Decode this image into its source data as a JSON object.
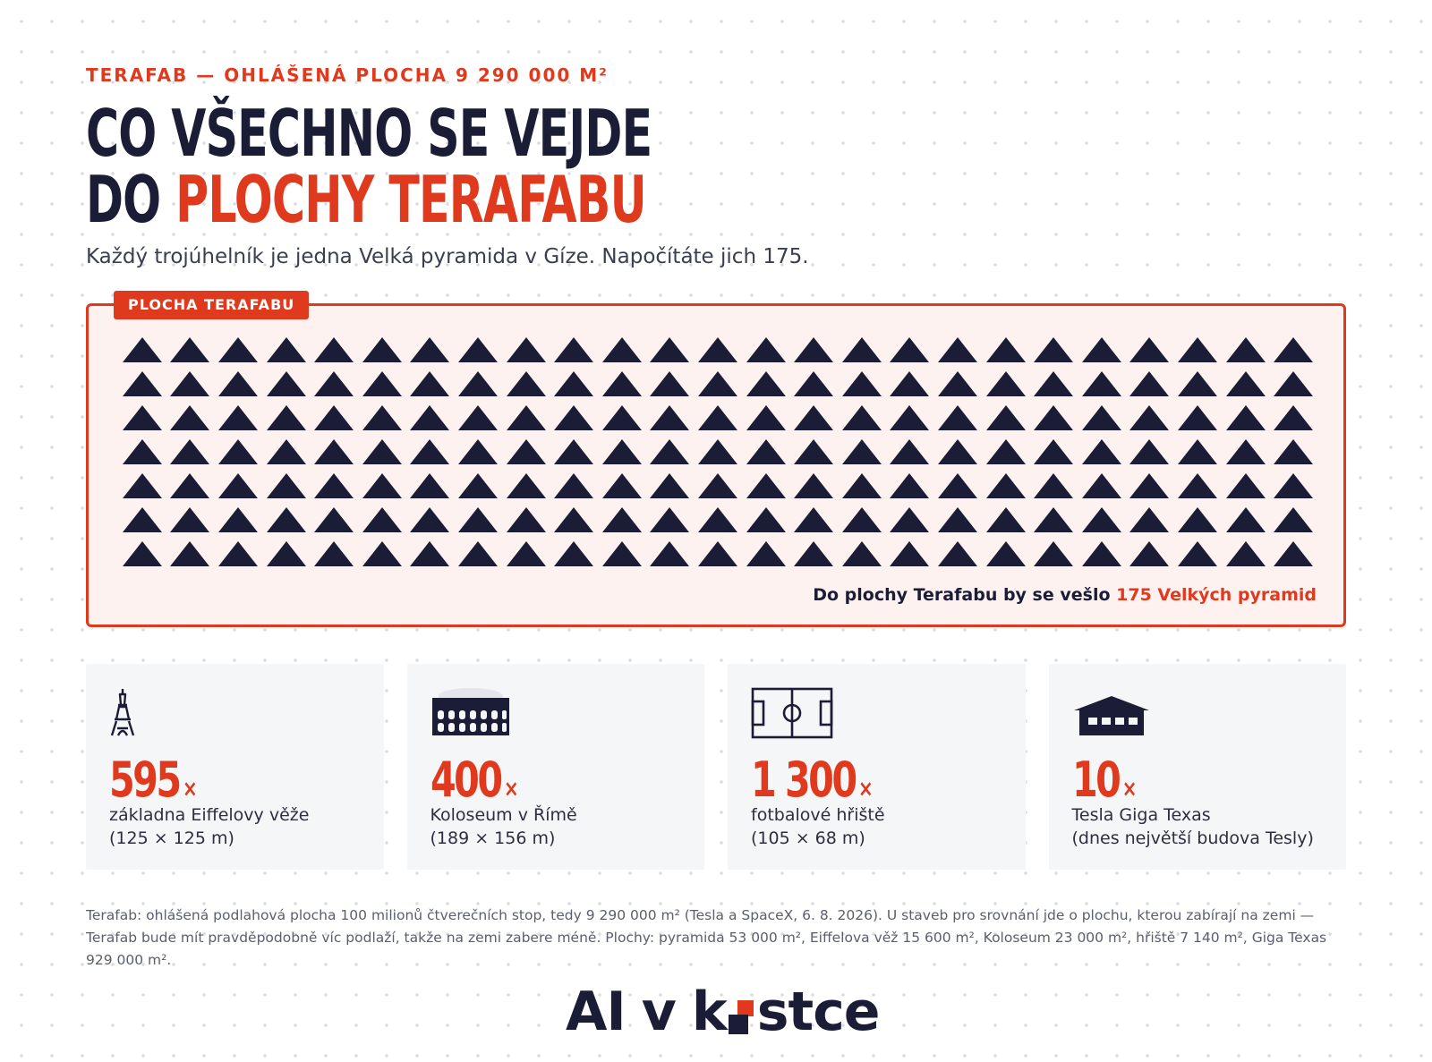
{
  "kicker": "TERAFAB — OHLÁŠENÁ PLOCHA 9 290 000 M²",
  "title": {
    "line1": "CO VŠECHNO SE VEJDE",
    "line2_prefix": "DO",
    "line2_accent": "PLOCHY TERAFABU"
  },
  "subtitle": "Každý trojúhelník je jedna Velká pyramida v Gíze. Napočítáte jich 175.",
  "area": {
    "tag": "PLOCHA TERAFABU",
    "pyramid_count": 175,
    "columns": 25,
    "rows": 7,
    "caption_prefix": "Do plochy Terafabu by se vešlo",
    "caption_highlight": "175 Velkých pyramid"
  },
  "cards": [
    {
      "icon": "eiffel-tower-icon",
      "value": "595",
      "times": "×",
      "label_line1": "základna Eiffelovy věže",
      "label_line2": "(125 × 125 m)"
    },
    {
      "icon": "colosseum-icon",
      "value": "400",
      "times": "×",
      "label_line1": "Koloseum v Římě",
      "label_line2": "(189 × 156 m)"
    },
    {
      "icon": "football-pitch-icon",
      "value": "1 300",
      "times": "×",
      "label_line1": "fotbalové hřiště",
      "label_line2": "(105 × 68 m)"
    },
    {
      "icon": "factory-building-icon",
      "value": "10",
      "times": "×",
      "label_line1": "Tesla Giga Texas",
      "label_line2": "(dnes největší budova Tesly)"
    }
  ],
  "footnote": "Terafab: ohlášená podlahová plocha 100 milionů čtverečních stop, tedy 9 290 000 m² (Tesla a SpaceX, 6. 8. 2026). U staveb pro srovnání jde o plochu, kterou zabírají na zemi — Terafab bude mít pravděpodobně víc podlaží, takže na zemi zabere méně. Plochy: pyramida 53 000 m², Eiffelova věž 15 600 m², Koloseum 23 000 m², hřiště 7 140 m², Giga Texas 929 000 m².",
  "logo": {
    "part1": "AI",
    "part2": "v",
    "part3_start": "k",
    "part3_end": "stce"
  },
  "colors": {
    "accent": "#e03a1e",
    "dark": "#1b1d36",
    "panel": "#fdf2f0",
    "card": "#f5f6f8"
  }
}
